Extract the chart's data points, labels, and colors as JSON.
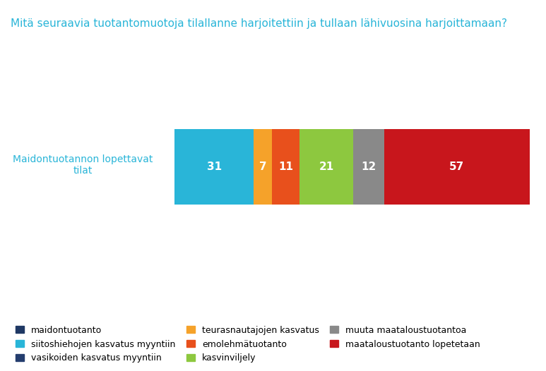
{
  "title": "Mitä seuraavia tuotantomuotoja tilallanne harjoitettiin ja tullaan lähivuosina harjoittamaan?",
  "row_label": "Maidontuotannon lopettavat\ntilat",
  "segments": [
    {
      "label": "siitoshiehojen kasvatus myyntiin",
      "value": 31,
      "color": "#29B5D8"
    },
    {
      "label": "teurasnautajojen kasvatus",
      "value": 7,
      "color": "#F5A22A"
    },
    {
      "label": "emolehmätuotanto",
      "value": 11,
      "color": "#E8501C"
    },
    {
      "label": "kasvinviljely",
      "value": 21,
      "color": "#8DC83F"
    },
    {
      "label": "muuta maataloustuotantoa",
      "value": 12,
      "color": "#898989"
    },
    {
      "label": "maataloustuotanto lopetetaan",
      "value": 57,
      "color": "#C8161C"
    }
  ],
  "legend_items": [
    {
      "label": "maidontuotanto",
      "color": "#1F3864"
    },
    {
      "label": "siitoshiehojen kasvatus myyntiin",
      "color": "#29B5D8"
    },
    {
      "label": "vasikoiden kasvatus myyntiin",
      "color": "#243D6E"
    },
    {
      "label": "teurasnautajojen kasvatus",
      "color": "#F5A22A"
    },
    {
      "label": "emolehmätuotanto",
      "color": "#E8501C"
    },
    {
      "label": "kasvinviljely",
      "color": "#8DC83F"
    },
    {
      "label": "muuta maataloustuotantoa",
      "color": "#898989"
    },
    {
      "label": "maataloustuotanto lopetetaan",
      "color": "#C8161C"
    }
  ],
  "title_color": "#29B5D8",
  "label_color": "#29B5D8",
  "figsize": [
    7.73,
    5.26
  ],
  "dpi": 100
}
